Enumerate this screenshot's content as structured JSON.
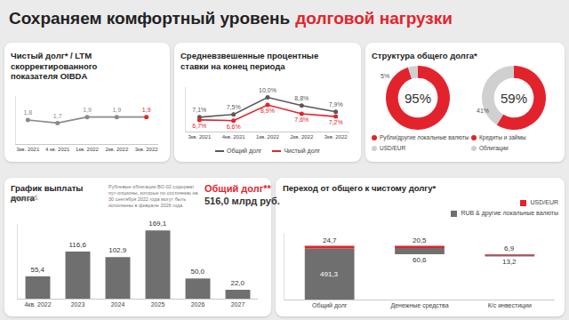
{
  "title": {
    "text": "Сохраняем комфортный уровень",
    "accent": "долговой нагрузки",
    "accent_color": "#e3232c"
  },
  "chart_data": [
    {
      "type": "line",
      "title": "Чистый долг* / LTM скорректированного показателя OIBDA",
      "categories": [
        "3кв. 2021",
        "4 кв. 2021",
        "1кв. 2022",
        "2кв. 2022",
        "3кв. 2022"
      ],
      "values": [
        1.8,
        1.7,
        1.9,
        1.9,
        1.9
      ],
      "value_labels": [
        "1,8",
        "1,7",
        "1,9",
        "1,9",
        "1,9"
      ],
      "color": "#8a8a8a",
      "colors": [
        "#8a8a8a",
        "#8a8a8a",
        "#8a8a8a",
        "#8a8a8a",
        "#e3232c"
      ],
      "marker": "circle",
      "data_labels": true,
      "grid": false,
      "tick_labels": "x",
      "ylim": [
        1.0,
        2.6
      ]
    },
    {
      "type": "line",
      "title": "Средневзвешенные процентные ставки на конец периода",
      "categories": [
        "3кв. 2021",
        "4кв. 2021",
        "1кв. 2022",
        "2кв. 2022",
        "3кв. 2022"
      ],
      "series": [
        {
          "name": "Общий долг",
          "color": "#595959",
          "values": [
            7.1,
            7.5,
            10.0,
            8.8,
            7.9
          ],
          "value_labels": [
            "7,1%",
            "7,5%",
            "10,0%",
            "8,8%",
            "7,9%"
          ]
        },
        {
          "name": "Чистый долг",
          "color": "#e3232c",
          "values": [
            6.7,
            6.6,
            8.9,
            7.6,
            7.2
          ],
          "value_labels": [
            "6,7%",
            "6,6%",
            "8,9%",
            "7,6%",
            "7,2%"
          ]
        }
      ],
      "marker": "circle",
      "data_labels": true,
      "grid": false,
      "legend": "bottom",
      "tick_labels": "x",
      "ylim": [
        5,
        11.5
      ]
    },
    {
      "type": "pie",
      "title": "Структура общего долга*",
      "pies": [
        {
          "categories": [
            "Рубли/другие локальные валюты",
            "USD/EUR"
          ],
          "values": [
            95,
            5
          ],
          "value_labels": [
            "95%",
            "5%"
          ],
          "colors": [
            "#e3232c",
            "#d0d0d0"
          ]
        },
        {
          "categories": [
            "Кредиты и займы",
            "Облигации"
          ],
          "values": [
            59,
            41
          ],
          "value_labels": [
            "59%",
            "41%"
          ],
          "colors": [
            "#e3232c",
            "#d0d0d0"
          ]
        }
      ],
      "data_labels": true
    },
    {
      "type": "bar",
      "title": "График выплаты долга",
      "subtitle": "млрд руб.",
      "note": "Рублевые облигации ВО-02 содержат пут-опционы, которые по состоянию на 30 сентября 2022 года могут быть исполнены в феврале 2026 года",
      "annotations": [
        "Общий долг**",
        "516,0 млрд руб."
      ],
      "categories": [
        "4кв. 2022",
        "2023",
        "2024",
        "2025",
        "2026",
        "2027"
      ],
      "values": [
        55.4,
        116.6,
        102.9,
        169.1,
        50.0,
        22.0
      ],
      "value_labels": [
        "55,4",
        "116,6",
        "102,9",
        "169,1",
        "50,0",
        "22,0"
      ],
      "color": "#6f6f70",
      "data_labels": true,
      "grid": false,
      "tick_labels": "x",
      "ylim": [
        0,
        185
      ]
    },
    {
      "type": "waterfall",
      "title": "Переход от общего к чистому долгу*",
      "categories": [
        "Общий долг",
        "Денежные средства",
        "К/с инвестиции"
      ],
      "series": [
        {
          "name": "RUB & другие локальные валюты",
          "color": "#6f6f70",
          "values": [
            491.3,
            60.6,
            13.2
          ],
          "value_labels": [
            "491,3",
            "60,6",
            "13,2"
          ]
        },
        {
          "name": "USD/EUR",
          "color": "#e3232c",
          "values": [
            24.7,
            20.5,
            6.9
          ],
          "value_labels": [
            "24,7",
            "20,5",
            "6,9"
          ]
        }
      ],
      "stacked": true,
      "data_labels": true,
      "grid": false,
      "legend": "top right",
      "tick_labels": "x",
      "ylim": [
        0,
        640
      ]
    }
  ]
}
